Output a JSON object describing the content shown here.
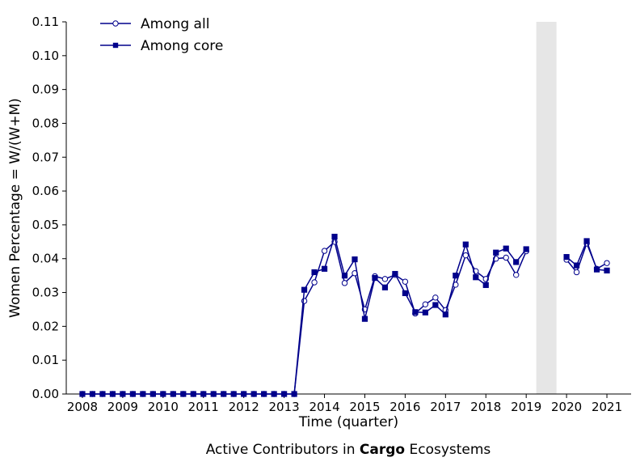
{
  "caption": {
    "prefix": "Active Contributors in ",
    "bold": "Cargo",
    "suffix": " Ecosystems"
  },
  "chart_data": {
    "type": "line",
    "xlabel": "Time (quarter)",
    "ylabel": "Women Percentage = W/(W+M)",
    "xlim": [
      2007.6,
      2021.6
    ],
    "ylim": [
      0,
      0.11
    ],
    "xticks": [
      2008,
      2009,
      2010,
      2011,
      2012,
      2013,
      2014,
      2015,
      2016,
      2017,
      2018,
      2019,
      2020,
      2021
    ],
    "yticks": [
      0.0,
      0.01,
      0.02,
      0.03,
      0.04,
      0.05,
      0.06,
      0.07,
      0.08,
      0.09,
      0.1,
      0.11
    ],
    "grid": false,
    "legend_position": "top-left",
    "shaded_region": [
      2019.25,
      2019.75
    ],
    "shade_color": "#e6e6e6",
    "line_color": "#00008b",
    "series": [
      {
        "name": "Among all",
        "marker": "open-circle",
        "points": [
          [
            2008.0,
            0
          ],
          [
            2008.25,
            0
          ],
          [
            2008.5,
            0
          ],
          [
            2008.75,
            0
          ],
          [
            2009.0,
            0
          ],
          [
            2009.25,
            0
          ],
          [
            2009.5,
            0
          ],
          [
            2009.75,
            0
          ],
          [
            2010.0,
            0
          ],
          [
            2010.25,
            0
          ],
          [
            2010.5,
            0
          ],
          [
            2010.75,
            0
          ],
          [
            2011.0,
            0
          ],
          [
            2011.25,
            0
          ],
          [
            2011.5,
            0
          ],
          [
            2011.75,
            0
          ],
          [
            2012.0,
            0
          ],
          [
            2012.25,
            0
          ],
          [
            2012.5,
            0
          ],
          [
            2012.75,
            0
          ],
          [
            2013.0,
            0
          ],
          [
            2013.25,
            0
          ],
          [
            2013.5,
            0.0275
          ],
          [
            2013.75,
            0.033
          ],
          [
            2014.0,
            0.0423
          ],
          [
            2014.25,
            0.045
          ],
          [
            2014.5,
            0.0328
          ],
          [
            2014.75,
            0.0357
          ],
          [
            2015.0,
            0.025
          ],
          [
            2015.25,
            0.0348
          ],
          [
            2015.5,
            0.034
          ],
          [
            2015.75,
            0.0352
          ],
          [
            2016.0,
            0.0332
          ],
          [
            2016.25,
            0.0238
          ],
          [
            2016.5,
            0.0265
          ],
          [
            2016.75,
            0.0285
          ],
          [
            2017.0,
            0.0248
          ],
          [
            2017.25,
            0.0323
          ],
          [
            2017.5,
            0.041
          ],
          [
            2017.75,
            0.0363
          ],
          [
            2018.0,
            0.034
          ],
          [
            2018.25,
            0.04
          ],
          [
            2018.5,
            0.0403
          ],
          [
            2018.75,
            0.0352
          ],
          [
            2019.0,
            0.0422
          ],
          [
            2020.0,
            0.0397
          ],
          [
            2020.25,
            0.036
          ],
          [
            2020.5,
            0.0445
          ],
          [
            2020.75,
            0.037
          ],
          [
            2021.0,
            0.0387
          ]
        ]
      },
      {
        "name": "Among core",
        "marker": "filled-square",
        "points": [
          [
            2008.0,
            0
          ],
          [
            2008.25,
            0
          ],
          [
            2008.5,
            0
          ],
          [
            2008.75,
            0
          ],
          [
            2009.0,
            0
          ],
          [
            2009.25,
            0
          ],
          [
            2009.5,
            0
          ],
          [
            2009.75,
            0
          ],
          [
            2010.0,
            0
          ],
          [
            2010.25,
            0
          ],
          [
            2010.5,
            0
          ],
          [
            2010.75,
            0
          ],
          [
            2011.0,
            0
          ],
          [
            2011.25,
            0
          ],
          [
            2011.5,
            0
          ],
          [
            2011.75,
            0
          ],
          [
            2012.0,
            0
          ],
          [
            2012.25,
            0
          ],
          [
            2012.5,
            0
          ],
          [
            2012.75,
            0
          ],
          [
            2013.0,
            0
          ],
          [
            2013.25,
            0
          ],
          [
            2013.5,
            0.0308
          ],
          [
            2013.75,
            0.036
          ],
          [
            2014.0,
            0.037
          ],
          [
            2014.25,
            0.0465
          ],
          [
            2014.5,
            0.035
          ],
          [
            2014.75,
            0.0398
          ],
          [
            2015.0,
            0.0222
          ],
          [
            2015.25,
            0.0343
          ],
          [
            2015.5,
            0.0315
          ],
          [
            2015.75,
            0.0355
          ],
          [
            2016.0,
            0.0298
          ],
          [
            2016.25,
            0.0242
          ],
          [
            2016.5,
            0.0241
          ],
          [
            2016.75,
            0.0263
          ],
          [
            2017.0,
            0.0235
          ],
          [
            2017.25,
            0.035
          ],
          [
            2017.5,
            0.0442
          ],
          [
            2017.75,
            0.0345
          ],
          [
            2018.0,
            0.0322
          ],
          [
            2018.25,
            0.0418
          ],
          [
            2018.5,
            0.043
          ],
          [
            2018.75,
            0.039
          ],
          [
            2019.0,
            0.0428
          ],
          [
            2020.0,
            0.0405
          ],
          [
            2020.25,
            0.038
          ],
          [
            2020.5,
            0.0452
          ],
          [
            2020.75,
            0.0368
          ],
          [
            2021.0,
            0.0365
          ]
        ]
      }
    ]
  }
}
